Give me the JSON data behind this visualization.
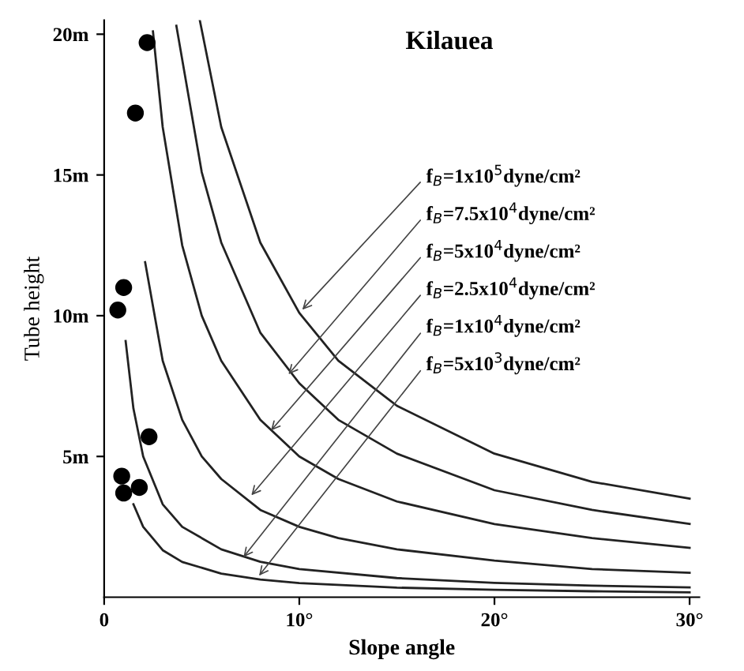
{
  "chart_data": {
    "type": "line",
    "title": "Kilauea",
    "xlabel": "Slope angle",
    "ylabel": "Tube height",
    "xlim": [
      0,
      30.5
    ],
    "ylim": [
      0,
      20.5
    ],
    "xticks": [
      0,
      {
        "value": 10,
        "label": "10°"
      },
      {
        "value": 20,
        "label": "20°"
      },
      {
        "value": 30,
        "label": "30°"
      }
    ],
    "yticks": [
      {
        "value": 5,
        "label": "5m"
      },
      {
        "value": 10,
        "label": "10m"
      },
      {
        "value": 15,
        "label": "15m"
      },
      {
        "value": 20,
        "label": "20m"
      }
    ],
    "grid": false,
    "legend": false,
    "series": [
      {
        "color": "#222222",
        "x": [
          4.9,
          6,
          8,
          10,
          12,
          15,
          20,
          25,
          30
        ],
        "values": [
          20.5,
          16.7,
          12.6,
          10.1,
          8.4,
          6.8,
          5.1,
          4.1,
          3.5
        ]
      },
      {
        "color": "#222222",
        "x": [
          3.7,
          5,
          6,
          8,
          10,
          12,
          15,
          20,
          25,
          30
        ],
        "values": [
          20.3,
          15.1,
          12.6,
          9.4,
          7.6,
          6.3,
          5.1,
          3.8,
          3.1,
          2.6
        ]
      },
      {
        "color": "#222222",
        "x": [
          2.5,
          3,
          4,
          5,
          6,
          8,
          10,
          12,
          15,
          20,
          25,
          30
        ],
        "values": [
          20.1,
          16.7,
          12.5,
          10.0,
          8.4,
          6.3,
          5.0,
          4.2,
          3.4,
          2.6,
          2.1,
          1.75
        ]
      },
      {
        "color": "#222222",
        "x": [
          2.1,
          3,
          4,
          5,
          6,
          8,
          10,
          12,
          15,
          20,
          25,
          30
        ],
        "values": [
          11.9,
          8.4,
          6.3,
          5.0,
          4.2,
          3.1,
          2.5,
          2.1,
          1.7,
          1.3,
          1.0,
          0.87
        ]
      },
      {
        "color": "#222222",
        "x": [
          1.1,
          1.5,
          2,
          3,
          4,
          6,
          8,
          10,
          15,
          20,
          25,
          30
        ],
        "values": [
          9.1,
          6.7,
          5.0,
          3.3,
          2.5,
          1.7,
          1.26,
          1.0,
          0.68,
          0.51,
          0.41,
          0.35
        ]
      },
      {
        "color": "#222222",
        "x": [
          1.5,
          2,
          3,
          4,
          6,
          8,
          10,
          15,
          20,
          25,
          30
        ],
        "values": [
          3.3,
          2.5,
          1.67,
          1.25,
          0.84,
          0.63,
          0.5,
          0.34,
          0.26,
          0.21,
          0.17
        ]
      },
      {
        "type": "scatter",
        "color": "#000000",
        "marker": "circle",
        "x": [
          2.2,
          1.6,
          1.0,
          0.7,
          2.3,
          0.9,
          1.0,
          1.8
        ],
        "values": [
          19.7,
          17.2,
          11.0,
          10.2,
          5.7,
          4.3,
          3.7,
          3.9
        ]
      }
    ],
    "annotations": [
      {
        "text": "f$_{B}$=1x10$^{5}$dyne/cm²",
        "x": 10,
        "y": 10.1
      },
      {
        "text": "f$_{B}$=7.5x10$^{4}$dyne/cm²",
        "x": 9.3,
        "y": 7.8
      },
      {
        "text": "f$_{B}$=5x10$^{4}$dyne/cm²",
        "x": 8.4,
        "y": 5.8
      },
      {
        "text": "f$_{B}$=2.5x10$^{4}$dyne/cm²",
        "x": 7.4,
        "y": 3.5
      },
      {
        "text": "f$_{B}$=1x10$^{4}$dyne/cm²",
        "x": 7.0,
        "y": 1.3
      },
      {
        "text": "f$_{B}$=5x10$^{3}$dyne/cm²",
        "x": 7.8,
        "y": 0.64
      }
    ]
  }
}
